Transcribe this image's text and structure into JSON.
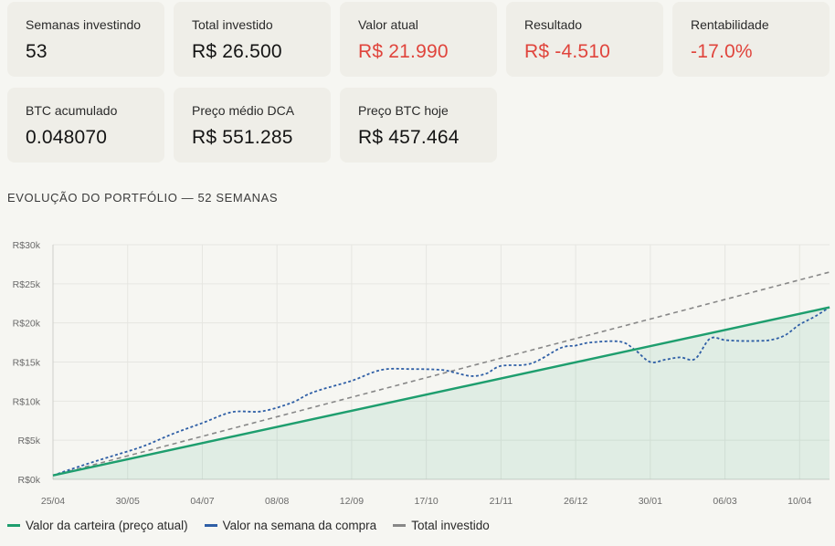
{
  "metrics": [
    {
      "label": "Semanas investindo",
      "value": "53",
      "negative": false
    },
    {
      "label": "Total investido",
      "value": "R$ 26.500",
      "negative": false
    },
    {
      "label": "Valor atual",
      "value": "R$ 21.990",
      "negative": true
    },
    {
      "label": "Resultado",
      "value": "R$ -4.510",
      "negative": true
    },
    {
      "label": "Rentabilidade",
      "value": "-17.0%",
      "negative": true
    },
    {
      "label": "BTC acumulado",
      "value": "0.048070",
      "negative": false
    },
    {
      "label": "Preço médio DCA",
      "value": "R$ 551.285",
      "negative": false
    },
    {
      "label": "Preço BTC hoje",
      "value": "R$ 457.464",
      "negative": false
    }
  ],
  "section_title": "EVOLUÇÃO DO PORTFÓLIO — 52 SEMANAS",
  "colors": {
    "portfolio": "#1e9e6e",
    "week_value": "#2f5fa6",
    "invested": "#888888",
    "negative": "#e0443c"
  },
  "chart_data": {
    "type": "line",
    "title": "",
    "xlabel": "",
    "ylabel": "",
    "ylim": [
      0,
      30000
    ],
    "yticks": [
      0,
      5000,
      10000,
      15000,
      20000,
      25000,
      30000
    ],
    "ytick_labels": [
      "R$0k",
      "R$5k",
      "R$10k",
      "R$15k",
      "R$20k",
      "R$25k",
      "R$30k"
    ],
    "xlim": [
      0,
      52
    ],
    "xticks": [
      0,
      5,
      10,
      15,
      20,
      25,
      30,
      35,
      40,
      45,
      50
    ],
    "xtick_labels": [
      "25/04",
      "30/05",
      "04/07",
      "08/08",
      "12/09",
      "17/10",
      "21/11",
      "26/12",
      "30/01",
      "06/03",
      "10/04"
    ],
    "grid": true,
    "legend_position": "bottom",
    "series": [
      {
        "name": "Valor da carteira (preço atual)",
        "style": "solid-area",
        "x": [
          0,
          52
        ],
        "y": [
          500,
          21990
        ]
      },
      {
        "name": "Valor na semana da compra",
        "style": "dotted",
        "x": [
          0,
          2,
          4,
          6,
          8,
          10,
          12,
          14,
          16,
          17,
          18,
          20,
          22,
          24,
          26,
          27,
          28,
          29,
          30,
          32,
          34,
          35,
          36,
          38,
          39,
          40,
          41,
          42,
          43,
          44,
          45,
          46,
          47,
          48,
          49,
          50,
          51,
          52
        ],
        "y": [
          500,
          1800,
          3000,
          4200,
          5800,
          7200,
          8600,
          8700,
          9800,
          10800,
          11500,
          12600,
          14000,
          14100,
          14000,
          13600,
          13200,
          13500,
          14500,
          14800,
          16800,
          17100,
          17500,
          17600,
          16500,
          15000,
          15300,
          15600,
          15400,
          18000,
          17800,
          17700,
          17700,
          17800,
          18400,
          19800,
          20800,
          22000
        ]
      },
      {
        "name": "Total investido",
        "style": "dashed",
        "x": [
          0,
          52
        ],
        "y": [
          500,
          26500
        ]
      }
    ]
  }
}
